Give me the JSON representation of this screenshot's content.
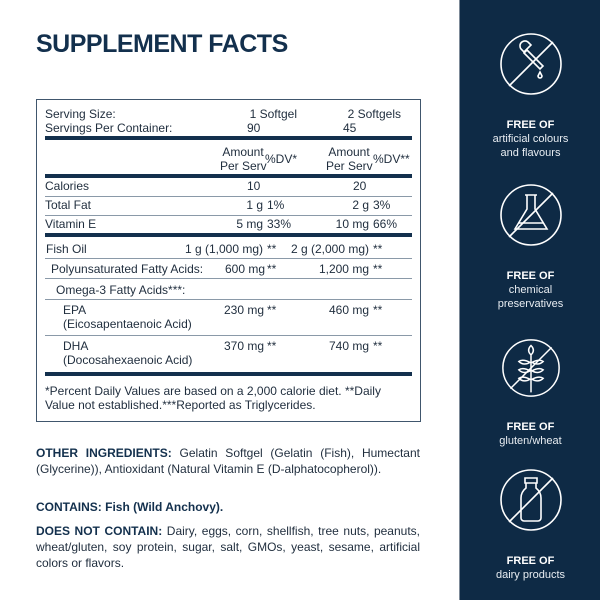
{
  "title": "SUPPLEMENT FACTS",
  "facts": {
    "serving_size_label": "Serving Size:",
    "serving_size_1": "1 Softgel",
    "serving_size_2": "2 Softgels",
    "servings_label": "Servings Per Container:",
    "servings_1": "90",
    "servings_2": "45",
    "header": {
      "amount": "Amount",
      "per_serv": "Per Serv",
      "dv1": "%DV*",
      "dv2": "%DV**"
    },
    "rows": [
      {
        "label": "Calories",
        "a1": "10",
        "d1": "",
        "a2": "20",
        "d2": ""
      },
      {
        "label": "Total Fat",
        "a1": "1 g",
        "d1": "1%",
        "a2": "2 g",
        "d2": "3%"
      },
      {
        "label": "Vitamin E",
        "a1": "5 mg",
        "d1": "33%",
        "a2": "10 mg",
        "d2": "66%"
      },
      {
        "label": "Fish Oil",
        "a1": "1 g (1,000 mg)",
        "d1": "**",
        "a2": "2 g (2,000 mg)",
        "d2": "**"
      },
      {
        "label": "Polyunsaturated Fatty Acids:",
        "a1": "600 mg",
        "d1": "**",
        "a2": "1,200 mg",
        "d2": "**"
      },
      {
        "label": "Omega-3 Fatty Acids***:"
      },
      {
        "label": "EPA",
        "sub": "(Eicosapentaenoic Acid)",
        "a1": "230 mg",
        "d1": "**",
        "a2": "460 mg",
        "d2": "**"
      },
      {
        "label": "DHA",
        "sub": "(Docosahexaenoic Acid)",
        "a1": "370 mg",
        "d1": "**",
        "a2": "740 mg",
        "d2": "**"
      }
    ],
    "footnote_1": "*Percent Daily Values are based on a 2,000 calorie diet. **Daily",
    "footnote_2": "Value not established.***Reported as Triglycerides."
  },
  "other_ingredients": {
    "label": "OTHER INGREDIENTS:",
    "text": " Gelatin Softgel (Gelatin (Fish), Humectant (Glycerine)), Antioxidant (Natural Vitamin E (D-alphatocopherol))."
  },
  "contains": {
    "label": "CONTAINS:",
    "text": " Fish (Wild Anchovy)."
  },
  "does_not_contain": {
    "label": "DOES NOT CONTAIN:",
    "text": " Dairy, eggs, corn, shellfish, tree nuts, peanuts, wheat/gluten, soy protein, sugar, salt, GMOs, yeast, sesame, artificial colors or flavors."
  },
  "sidebar": {
    "background": "#0e2a45",
    "features": [
      {
        "icon": "no-dropper-icon",
        "title": "FREE OF",
        "line1": "artificial colours",
        "line2": "and flavours"
      },
      {
        "icon": "no-flask-icon",
        "title": "FREE OF",
        "line1": "chemical",
        "line2": "preservatives"
      },
      {
        "icon": "no-wheat-icon",
        "title": "FREE OF",
        "line1": "gluten/wheat",
        "line2": ""
      },
      {
        "icon": "no-milk-bottle-icon",
        "title": "FREE OF",
        "line1": "dairy products",
        "line2": ""
      }
    ]
  }
}
